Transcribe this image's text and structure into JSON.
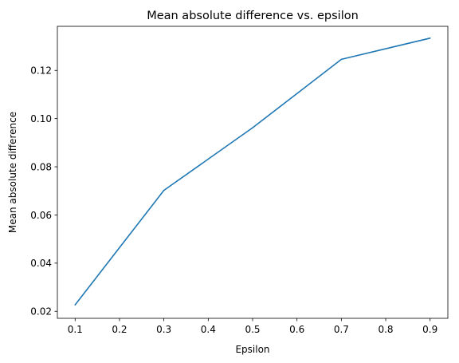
{
  "chart_data": {
    "type": "line",
    "title": "Mean absolute difference vs. epsilon",
    "xlabel": "Epsilon",
    "ylabel": "Mean absolute difference",
    "xlim": [
      0.06,
      0.94
    ],
    "ylim": [
      0.0171,
      0.1383
    ],
    "xticks": [
      0.1,
      0.2,
      0.3,
      0.4,
      0.5,
      0.6,
      0.7,
      0.8,
      0.9
    ],
    "xtick_labels": [
      "0.1",
      "0.2",
      "0.3",
      "0.4",
      "0.5",
      "0.6",
      "0.7",
      "0.8",
      "0.9"
    ],
    "yticks": [
      0.02,
      0.04,
      0.06,
      0.08,
      0.1,
      0.12
    ],
    "ytick_labels": [
      "0.02",
      "0.04",
      "0.06",
      "0.08",
      "0.10",
      "0.12"
    ],
    "grid": false,
    "series": [
      {
        "color": "#1f77b4",
        "x": [
          0.1,
          0.3,
          0.5,
          0.7,
          0.9
        ],
        "y": [
          0.0227,
          0.0702,
          0.0962,
          0.1246,
          0.1334
        ]
      }
    ]
  }
}
